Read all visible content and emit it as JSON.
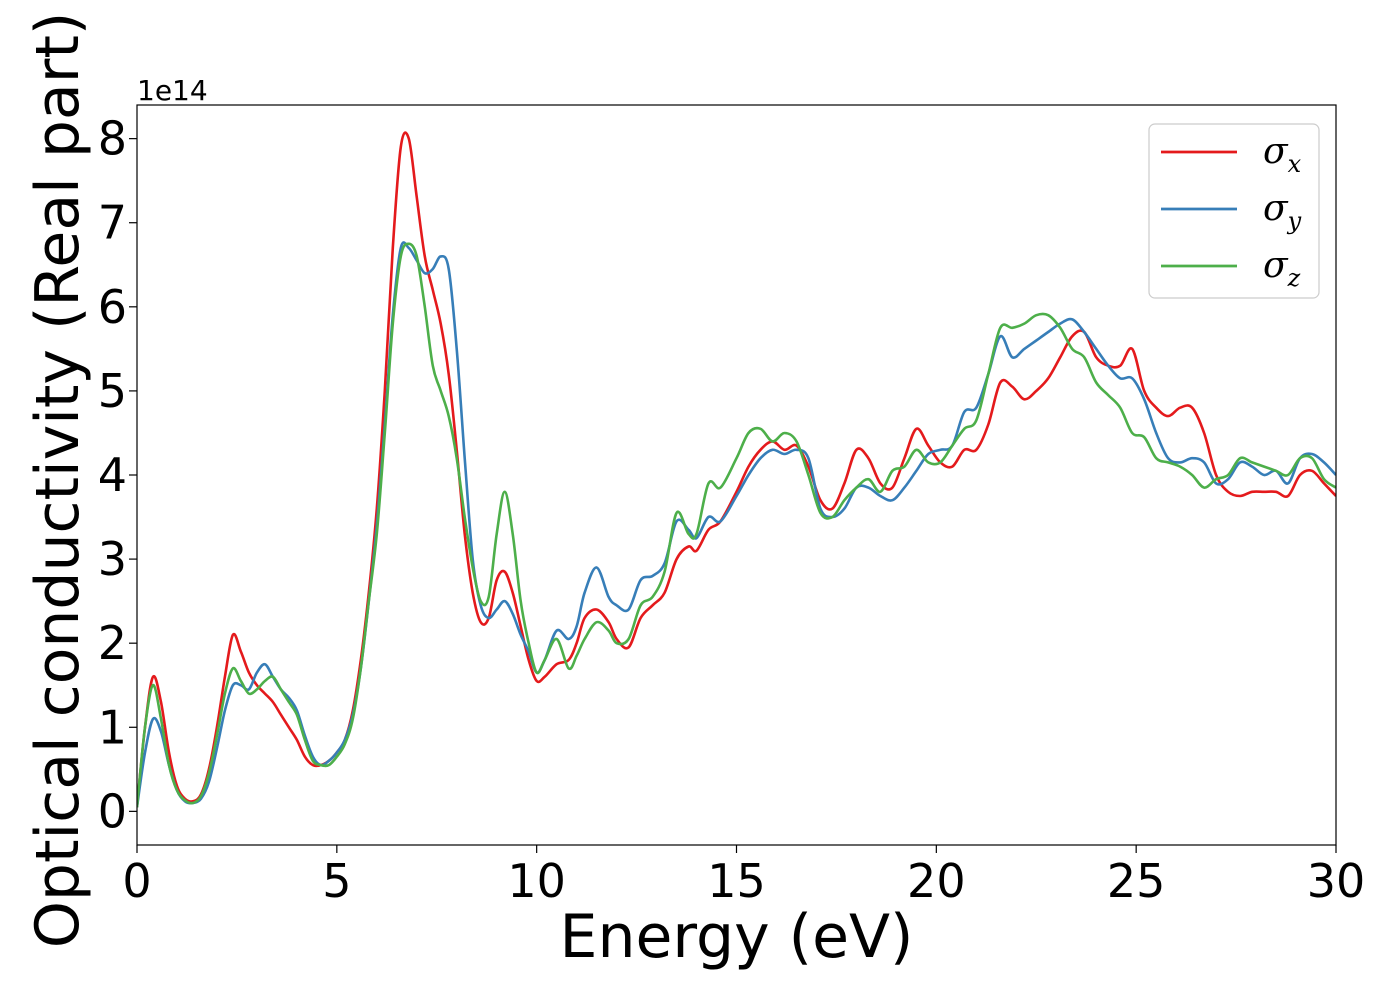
{
  "chart_data": {
    "type": "line",
    "xlabel": "Energy (eV)",
    "ylabel": "Optical conductivity (Real part)",
    "y_offset_label": "1e14",
    "xlim": [
      0,
      30
    ],
    "ylim": [
      -0.4,
      8.4
    ],
    "x_ticks": [
      0,
      5,
      10,
      15,
      20,
      25,
      30
    ],
    "y_ticks": [
      0,
      1,
      2,
      3,
      4,
      5,
      6,
      7,
      8
    ],
    "grid": false,
    "legend_position": "top-right",
    "series": [
      {
        "name": "σ",
        "subscript": "x",
        "color": "#e41a1c",
        "x": [
          0,
          0.2,
          0.4,
          0.6,
          0.8,
          1.0,
          1.2,
          1.4,
          1.6,
          1.8,
          2.0,
          2.2,
          2.4,
          2.6,
          2.8,
          3.0,
          3.2,
          3.4,
          3.6,
          3.8,
          4.0,
          4.2,
          4.4,
          4.6,
          4.8,
          5.0,
          5.2,
          5.4,
          5.6,
          5.8,
          6.0,
          6.2,
          6.4,
          6.6,
          6.8,
          7.0,
          7.2,
          7.4,
          7.6,
          7.8,
          8.0,
          8.2,
          8.4,
          8.6,
          8.8,
          9.0,
          9.2,
          9.4,
          9.6,
          9.8,
          10.0,
          10.2,
          10.5,
          10.8,
          11.0,
          11.2,
          11.5,
          11.8,
          12.0,
          12.3,
          12.6,
          12.9,
          13.2,
          13.5,
          13.8,
          14.0,
          14.3,
          14.6,
          15.0,
          15.3,
          15.6,
          15.9,
          16.2,
          16.5,
          16.8,
          17.1,
          17.4,
          17.7,
          18.0,
          18.3,
          18.6,
          18.9,
          19.2,
          19.5,
          19.8,
          20.1,
          20.4,
          20.7,
          21.0,
          21.3,
          21.6,
          21.9,
          22.2,
          22.5,
          22.8,
          23.1,
          23.4,
          23.7,
          24.0,
          24.3,
          24.6,
          24.9,
          25.2,
          25.5,
          25.8,
          26.1,
          26.4,
          26.7,
          27.0,
          27.3,
          27.6,
          27.9,
          28.2,
          28.5,
          28.8,
          29.1,
          29.4,
          29.7,
          30.0
        ],
        "values": [
          0.05,
          1.0,
          1.6,
          1.3,
          0.7,
          0.3,
          0.15,
          0.12,
          0.2,
          0.5,
          1.0,
          1.6,
          2.1,
          1.9,
          1.65,
          1.5,
          1.4,
          1.3,
          1.15,
          1.0,
          0.85,
          0.65,
          0.55,
          0.55,
          0.6,
          0.7,
          0.85,
          1.2,
          1.8,
          2.6,
          3.6,
          5.0,
          6.7,
          7.9,
          8.0,
          7.3,
          6.6,
          6.2,
          5.8,
          5.2,
          4.3,
          3.3,
          2.6,
          2.25,
          2.3,
          2.75,
          2.85,
          2.6,
          2.2,
          1.8,
          1.55,
          1.6,
          1.75,
          1.8,
          2.0,
          2.3,
          2.4,
          2.25,
          2.05,
          1.95,
          2.3,
          2.45,
          2.6,
          3.0,
          3.15,
          3.1,
          3.35,
          3.45,
          3.8,
          4.1,
          4.3,
          4.4,
          4.3,
          4.35,
          4.1,
          3.7,
          3.6,
          3.9,
          4.3,
          4.2,
          3.9,
          3.85,
          4.2,
          4.55,
          4.35,
          4.15,
          4.1,
          4.3,
          4.3,
          4.6,
          5.1,
          5.05,
          4.9,
          5.0,
          5.15,
          5.4,
          5.65,
          5.7,
          5.4,
          5.3,
          5.3,
          5.5,
          5.0,
          4.8,
          4.7,
          4.8,
          4.8,
          4.5,
          4.0,
          3.8,
          3.75,
          3.8,
          3.8,
          3.8,
          3.75,
          4.0,
          4.05,
          3.9,
          3.75
        ]
      },
      {
        "name": "σ",
        "subscript": "y",
        "color": "#377eb8",
        "x": [
          0,
          0.2,
          0.4,
          0.6,
          0.8,
          1.0,
          1.2,
          1.4,
          1.6,
          1.8,
          2.0,
          2.2,
          2.4,
          2.6,
          2.8,
          3.0,
          3.2,
          3.4,
          3.6,
          3.8,
          4.0,
          4.2,
          4.4,
          4.6,
          4.8,
          5.0,
          5.2,
          5.4,
          5.6,
          5.8,
          6.0,
          6.2,
          6.4,
          6.6,
          6.8,
          7.0,
          7.2,
          7.4,
          7.6,
          7.8,
          8.0,
          8.2,
          8.4,
          8.6,
          8.8,
          9.0,
          9.2,
          9.4,
          9.6,
          9.8,
          10.0,
          10.2,
          10.5,
          10.8,
          11.0,
          11.2,
          11.5,
          11.8,
          12.0,
          12.3,
          12.6,
          12.9,
          13.2,
          13.5,
          13.8,
          14.0,
          14.3,
          14.6,
          15.0,
          15.3,
          15.6,
          15.9,
          16.2,
          16.5,
          16.8,
          17.1,
          17.4,
          17.7,
          18.0,
          18.3,
          18.6,
          18.9,
          19.2,
          19.5,
          19.8,
          20.1,
          20.4,
          20.7,
          21.0,
          21.3,
          21.6,
          21.9,
          22.2,
          22.5,
          22.8,
          23.1,
          23.4,
          23.7,
          24.0,
          24.3,
          24.6,
          24.9,
          25.2,
          25.5,
          25.8,
          26.1,
          26.4,
          26.7,
          27.0,
          27.3,
          27.6,
          27.9,
          28.2,
          28.5,
          28.8,
          29.1,
          29.4,
          29.7,
          30.0
        ],
        "values": [
          0.05,
          0.7,
          1.1,
          0.95,
          0.55,
          0.25,
          0.12,
          0.1,
          0.15,
          0.35,
          0.75,
          1.2,
          1.5,
          1.5,
          1.45,
          1.65,
          1.75,
          1.6,
          1.45,
          1.35,
          1.2,
          0.9,
          0.65,
          0.55,
          0.6,
          0.7,
          0.85,
          1.15,
          1.7,
          2.5,
          3.4,
          4.6,
          5.9,
          6.7,
          6.7,
          6.55,
          6.4,
          6.45,
          6.6,
          6.45,
          5.5,
          4.2,
          3.0,
          2.45,
          2.3,
          2.4,
          2.5,
          2.35,
          2.1,
          1.9,
          1.65,
          1.8,
          2.15,
          2.05,
          2.2,
          2.6,
          2.9,
          2.55,
          2.45,
          2.4,
          2.75,
          2.8,
          2.95,
          3.45,
          3.35,
          3.25,
          3.5,
          3.45,
          3.75,
          4.0,
          4.2,
          4.3,
          4.25,
          4.3,
          4.2,
          3.6,
          3.5,
          3.6,
          3.85,
          3.85,
          3.75,
          3.7,
          3.85,
          4.05,
          4.25,
          4.3,
          4.35,
          4.75,
          4.8,
          5.2,
          5.65,
          5.4,
          5.5,
          5.6,
          5.7,
          5.8,
          5.85,
          5.7,
          5.5,
          5.3,
          5.15,
          5.15,
          4.9,
          4.5,
          4.2,
          4.15,
          4.2,
          4.15,
          3.9,
          3.95,
          4.15,
          4.1,
          4.0,
          4.05,
          3.9,
          4.2,
          4.25,
          4.15,
          4.0
        ]
      },
      {
        "name": "σ",
        "subscript": "z",
        "color": "#4daf4a",
        "x": [
          0,
          0.2,
          0.4,
          0.6,
          0.8,
          1.0,
          1.2,
          1.4,
          1.6,
          1.8,
          2.0,
          2.2,
          2.4,
          2.6,
          2.8,
          3.0,
          3.2,
          3.4,
          3.6,
          3.8,
          4.0,
          4.2,
          4.4,
          4.6,
          4.8,
          5.0,
          5.2,
          5.4,
          5.6,
          5.8,
          6.0,
          6.2,
          6.4,
          6.6,
          6.8,
          7.0,
          7.2,
          7.4,
          7.6,
          7.8,
          8.0,
          8.2,
          8.4,
          8.6,
          8.8,
          9.0,
          9.2,
          9.4,
          9.6,
          9.8,
          10.0,
          10.2,
          10.5,
          10.8,
          11.0,
          11.2,
          11.5,
          11.8,
          12.0,
          12.3,
          12.6,
          12.9,
          13.2,
          13.5,
          13.8,
          14.0,
          14.3,
          14.6,
          15.0,
          15.3,
          15.6,
          15.9,
          16.2,
          16.5,
          16.8,
          17.1,
          17.4,
          17.7,
          18.0,
          18.3,
          18.6,
          18.9,
          19.2,
          19.5,
          19.8,
          20.1,
          20.4,
          20.7,
          21.0,
          21.3,
          21.6,
          21.9,
          22.2,
          22.5,
          22.8,
          23.1,
          23.4,
          23.7,
          24.0,
          24.3,
          24.6,
          24.9,
          25.2,
          25.5,
          25.8,
          26.1,
          26.4,
          26.7,
          27.0,
          27.3,
          27.6,
          27.9,
          28.2,
          28.5,
          28.8,
          29.1,
          29.4,
          29.7,
          30.0
        ],
        "values": [
          0.05,
          1.0,
          1.5,
          1.1,
          0.55,
          0.25,
          0.13,
          0.1,
          0.18,
          0.45,
          0.9,
          1.4,
          1.7,
          1.55,
          1.4,
          1.45,
          1.55,
          1.6,
          1.45,
          1.3,
          1.15,
          0.85,
          0.6,
          0.55,
          0.55,
          0.65,
          0.8,
          1.1,
          1.7,
          2.5,
          3.3,
          4.5,
          5.8,
          6.6,
          6.75,
          6.6,
          6.0,
          5.3,
          5.0,
          4.7,
          4.2,
          3.5,
          2.9,
          2.5,
          2.55,
          3.3,
          3.8,
          3.3,
          2.5,
          2.0,
          1.65,
          1.8,
          2.05,
          1.7,
          1.85,
          2.05,
          2.25,
          2.15,
          2.0,
          2.05,
          2.45,
          2.55,
          2.85,
          3.55,
          3.3,
          3.3,
          3.9,
          3.85,
          4.2,
          4.5,
          4.55,
          4.4,
          4.5,
          4.4,
          4.0,
          3.55,
          3.5,
          3.7,
          3.85,
          3.95,
          3.8,
          4.05,
          4.1,
          4.3,
          4.15,
          4.15,
          4.35,
          4.55,
          4.65,
          5.2,
          5.75,
          5.75,
          5.8,
          5.9,
          5.9,
          5.75,
          5.5,
          5.4,
          5.1,
          4.95,
          4.8,
          4.5,
          4.45,
          4.2,
          4.15,
          4.1,
          4.0,
          3.85,
          3.95,
          4.0,
          4.2,
          4.15,
          4.1,
          4.05,
          4.0,
          4.2,
          4.2,
          3.95,
          3.85
        ]
      }
    ]
  }
}
